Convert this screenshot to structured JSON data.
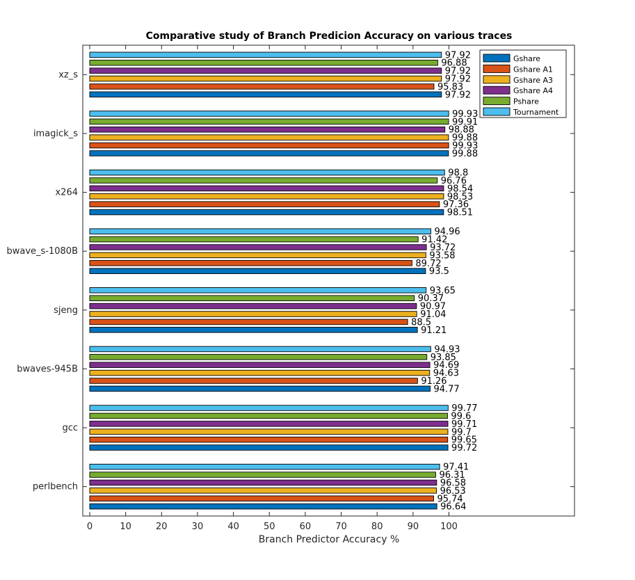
{
  "chart_data": {
    "type": "bar",
    "orientation": "horizontal",
    "title": "Comparative study of Branch Predicion Accuracy on various traces",
    "xlabel": "Branch Predictor Accuracy %",
    "ylabel": "",
    "xlim": [
      0,
      135
    ],
    "x_ticks": [
      0,
      10,
      20,
      30,
      40,
      50,
      60,
      70,
      80,
      90,
      100
    ],
    "grid": false,
    "legend_position": "top-right",
    "categories": [
      "perlbench",
      "gcc",
      "bwaves-945B",
      "sjeng",
      "bwave_s-1080B",
      "x264",
      "imagick_s",
      "xz_s"
    ],
    "series": [
      {
        "name": "Gshare",
        "color": "#0072BD",
        "values": [
          96.64,
          99.72,
          94.77,
          91.21,
          93.5,
          98.51,
          99.88,
          97.92
        ]
      },
      {
        "name": "Gshare A1",
        "color": "#D95319",
        "values": [
          95.74,
          99.65,
          91.26,
          88.5,
          89.72,
          97.36,
          99.93,
          95.83
        ]
      },
      {
        "name": "Gshare A3",
        "color": "#EDB120",
        "values": [
          96.53,
          99.7,
          94.63,
          91.04,
          93.58,
          98.53,
          99.88,
          97.92
        ]
      },
      {
        "name": "Gshare A4",
        "color": "#7E2F8E",
        "values": [
          96.58,
          99.71,
          94.69,
          90.97,
          93.72,
          98.54,
          98.88,
          97.92
        ]
      },
      {
        "name": "Pshare",
        "color": "#77AC30",
        "values": [
          96.31,
          99.6,
          93.85,
          90.37,
          91.42,
          96.76,
          99.91,
          96.88
        ]
      },
      {
        "name": "Tournament",
        "color": "#4DBEEE",
        "values": [
          97.41,
          99.77,
          94.93,
          93.65,
          94.96,
          98.8,
          99.93,
          97.92
        ]
      }
    ]
  }
}
